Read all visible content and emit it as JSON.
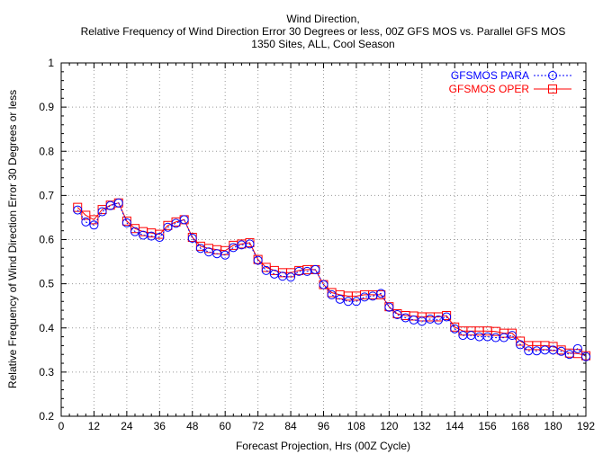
{
  "chart_data": {
    "type": "line",
    "title": "Wind Direction,",
    "subtitle_lines": [
      "Relative Frequency of Wind Direction Error 30 Degrees or less, 00Z GFS MOS vs. Parallel GFS MOS",
      "1350 Sites, ALL, Cool Season"
    ],
    "xlabel": "Forecast Projection, Hrs (00Z Cycle)",
    "ylabel": "Relative Frequency of Wind Direction Error 30 Degrees or less",
    "xlim": [
      0,
      192
    ],
    "ylim": [
      0.2,
      1.0
    ],
    "xticks": [
      0,
      12,
      24,
      36,
      48,
      60,
      72,
      84,
      96,
      108,
      120,
      132,
      144,
      156,
      168,
      180,
      192
    ],
    "xtick_labels": [
      "0",
      "12",
      "24",
      "36",
      "48",
      "60",
      "72",
      "84",
      "96",
      "108",
      "120",
      "132",
      "144",
      "156",
      "168",
      "180",
      "192"
    ],
    "yticks": [
      0.2,
      0.3,
      0.4,
      0.5,
      0.6,
      0.7,
      0.8,
      0.9,
      1.0
    ],
    "ytick_labels": [
      "0.2",
      "0.3",
      "0.4",
      "0.5",
      "0.6",
      "0.7",
      "0.8",
      "0.9",
      "1"
    ],
    "grid": true,
    "legend_position": "top-right",
    "x": [
      6,
      9,
      12,
      15,
      18,
      21,
      24,
      27,
      30,
      33,
      36,
      39,
      42,
      45,
      48,
      51,
      54,
      57,
      60,
      63,
      66,
      69,
      72,
      75,
      78,
      81,
      84,
      87,
      90,
      93,
      96,
      99,
      102,
      105,
      108,
      111,
      114,
      117,
      120,
      123,
      126,
      129,
      132,
      135,
      138,
      141,
      144,
      147,
      150,
      153,
      156,
      159,
      162,
      165,
      168,
      171,
      174,
      177,
      180,
      183,
      186,
      189,
      192
    ],
    "series": [
      {
        "name": "GFSMOS PARA",
        "color": "#0000ff",
        "marker": "circle",
        "line_style": "dashed",
        "values": [
          0.667,
          0.64,
          0.633,
          0.663,
          0.677,
          0.683,
          0.638,
          0.618,
          0.61,
          0.608,
          0.605,
          0.628,
          0.637,
          0.645,
          0.603,
          0.58,
          0.572,
          0.568,
          0.565,
          0.582,
          0.588,
          0.59,
          0.553,
          0.53,
          0.522,
          0.517,
          0.515,
          0.528,
          0.528,
          0.532,
          0.498,
          0.475,
          0.465,
          0.46,
          0.46,
          0.47,
          0.472,
          0.478,
          0.447,
          0.43,
          0.423,
          0.418,
          0.415,
          0.42,
          0.418,
          0.425,
          0.398,
          0.383,
          0.383,
          0.38,
          0.38,
          0.378,
          0.378,
          0.383,
          0.362,
          0.348,
          0.348,
          0.35,
          0.35,
          0.347,
          0.34,
          0.353,
          0.335
        ]
      },
      {
        "name": "GFSMOS OPER",
        "color": "#ff0000",
        "marker": "square",
        "line_style": "solid",
        "values": [
          0.673,
          0.655,
          0.645,
          0.668,
          0.678,
          0.683,
          0.642,
          0.625,
          0.618,
          0.615,
          0.612,
          0.632,
          0.64,
          0.645,
          0.605,
          0.585,
          0.58,
          0.577,
          0.575,
          0.587,
          0.59,
          0.593,
          0.555,
          0.537,
          0.53,
          0.525,
          0.525,
          0.53,
          0.532,
          0.532,
          0.498,
          0.48,
          0.475,
          0.472,
          0.472,
          0.475,
          0.475,
          0.475,
          0.448,
          0.432,
          0.428,
          0.427,
          0.425,
          0.425,
          0.425,
          0.428,
          0.402,
          0.393,
          0.393,
          0.393,
          0.393,
          0.392,
          0.388,
          0.388,
          0.37,
          0.36,
          0.36,
          0.36,
          0.358,
          0.35,
          0.343,
          0.342,
          0.337
        ]
      }
    ]
  }
}
